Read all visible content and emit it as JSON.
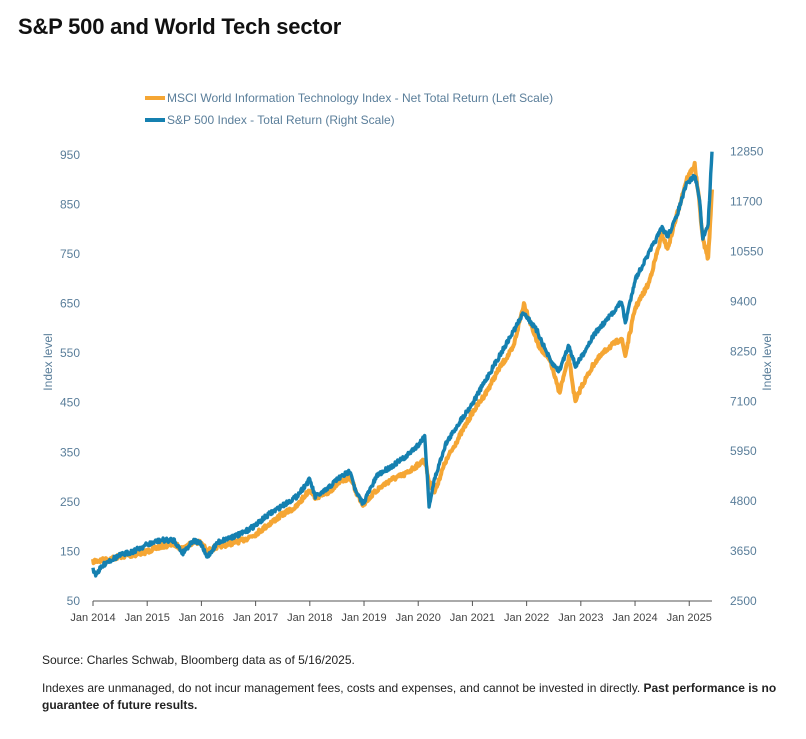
{
  "title": "S&P 500 and World Tech sector",
  "chart_data": {
    "type": "line",
    "left_axis": {
      "label": "Index level",
      "ticks": [
        50,
        150,
        250,
        350,
        450,
        550,
        650,
        750,
        850,
        950
      ],
      "range": [
        50,
        1000
      ]
    },
    "right_axis": {
      "label": "Index level",
      "ticks": [
        2500,
        3650,
        4800,
        5950,
        7100,
        8250,
        9400,
        10550,
        11700,
        12850
      ],
      "range": [
        2500,
        13350
      ]
    },
    "x_ticks": [
      "Jan 2014",
      "Jan 2015",
      "Jan 2016",
      "Jan 2017",
      "Jan 2018",
      "Jan 2019",
      "Jan 2020",
      "Jan 2021",
      "Jan 2022",
      "Jan 2023",
      "Jan 2024",
      "Jan 2025"
    ],
    "x_range": [
      2014.0,
      2025.42
    ],
    "series": [
      {
        "name": "MSCI World Information Technology Index - Net Total Return (Left Scale)",
        "axis": "left",
        "color": "#f5a634",
        "x": [
          2014.0,
          2014.25,
          2014.5,
          2014.75,
          2015.0,
          2015.25,
          2015.5,
          2015.65,
          2015.85,
          2016.0,
          2016.1,
          2016.3,
          2016.5,
          2016.75,
          2017.0,
          2017.25,
          2017.5,
          2017.75,
          2018.0,
          2018.1,
          2018.3,
          2018.5,
          2018.75,
          2018.85,
          2018.98,
          2019.25,
          2019.5,
          2019.75,
          2020.0,
          2020.12,
          2020.2,
          2020.3,
          2020.5,
          2020.75,
          2021.0,
          2021.25,
          2021.5,
          2021.75,
          2021.95,
          2022.2,
          2022.45,
          2022.6,
          2022.78,
          2022.9,
          2023.0,
          2023.25,
          2023.5,
          2023.75,
          2023.82,
          2024.0,
          2024.25,
          2024.5,
          2024.6,
          2024.75,
          2024.95,
          2025.1,
          2025.18,
          2025.25,
          2025.35,
          2025.42
        ],
        "y": [
          130,
          133,
          140,
          143,
          150,
          160,
          165,
          155,
          170,
          168,
          150,
          160,
          165,
          172,
          185,
          205,
          225,
          240,
          275,
          260,
          265,
          285,
          300,
          270,
          245,
          275,
          295,
          305,
          325,
          335,
          290,
          270,
          330,
          380,
          430,
          470,
          520,
          560,
          650,
          570,
          530,
          470,
          540,
          450,
          480,
          530,
          560,
          580,
          545,
          640,
          690,
          790,
          760,
          820,
          900,
          930,
          860,
          780,
          740,
          880
        ]
      },
      {
        "name": "S&P 500 Index - Total Return (Right Scale)",
        "axis": "right",
        "color": "#1580b0",
        "x": [
          2014.0,
          2014.05,
          2014.25,
          2014.5,
          2014.75,
          2015.0,
          2015.25,
          2015.5,
          2015.65,
          2015.85,
          2016.0,
          2016.1,
          2016.3,
          2016.5,
          2016.75,
          2017.0,
          2017.25,
          2017.5,
          2017.75,
          2018.0,
          2018.1,
          2018.3,
          2018.5,
          2018.75,
          2018.85,
          2018.98,
          2019.25,
          2019.5,
          2019.75,
          2020.0,
          2020.12,
          2020.2,
          2020.3,
          2020.5,
          2020.75,
          2021.0,
          2021.25,
          2021.5,
          2021.75,
          2021.95,
          2022.2,
          2022.45,
          2022.6,
          2022.78,
          2022.9,
          2023.0,
          2023.25,
          2023.5,
          2023.75,
          2023.82,
          2024.0,
          2024.25,
          2024.5,
          2024.6,
          2024.75,
          2024.95,
          2025.1,
          2025.18,
          2025.25,
          2025.35,
          2025.42
        ],
        "y": [
          3220,
          3120,
          3400,
          3550,
          3650,
          3800,
          3900,
          3900,
          3600,
          3900,
          3800,
          3500,
          3850,
          3950,
          4050,
          4250,
          4500,
          4700,
          4900,
          5300,
          4900,
          5050,
          5300,
          5500,
          5000,
          4750,
          5400,
          5600,
          5800,
          6100,
          6300,
          4700,
          5300,
          6100,
          6600,
          7050,
          7600,
          8150,
          8700,
          9150,
          8700,
          8000,
          7800,
          8400,
          7900,
          8100,
          8650,
          9000,
          9400,
          8900,
          9900,
          10500,
          11100,
          10900,
          11300,
          12100,
          12300,
          11850,
          10850,
          11200,
          12850
        ]
      }
    ],
    "legend": [
      "MSCI World Information Technology Index - Net Total Return (Left Scale)",
      "S&P 500 Index - Total Return (Right Scale)"
    ]
  },
  "footer": {
    "source": "Source: Charles Schwab, Bloomberg data as of 5/16/2025.",
    "disclaimer": "Indexes are unmanaged, do not incur management fees, costs and expenses, and cannot be invested in directly.",
    "disclaimer_bold": "Past performance is no guarantee of future results."
  }
}
